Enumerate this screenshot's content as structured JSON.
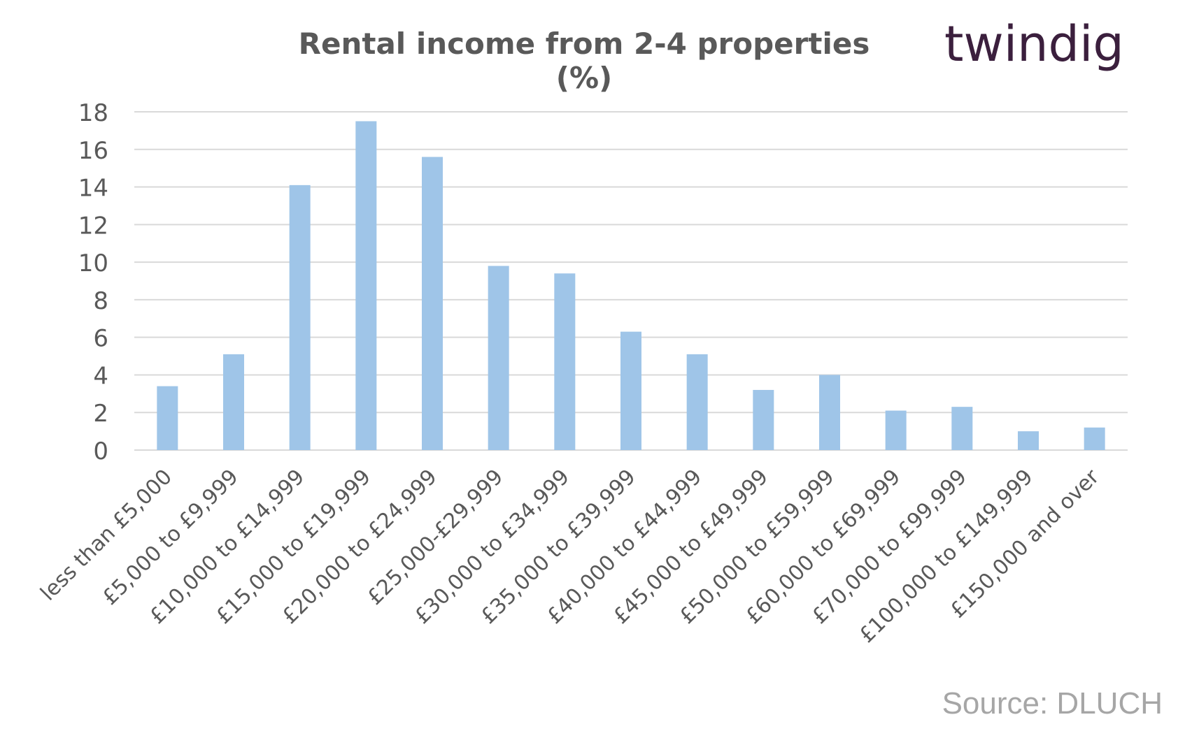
{
  "chart_data": {
    "type": "bar",
    "title": "Rental income from 2-4 properties (%)",
    "categories": [
      "less than £5,000",
      "£5,000 to £9,999",
      "£10,000 to £14,999",
      "£15,000 to £19,999",
      "£20,000 to £24,999",
      "£25,000-£29,999",
      "£30,000 to £34,999",
      "£35,000 to £39,999",
      "£40,000 to £44,999",
      "£45,000 to £49,999",
      "£50,000 to £59,999",
      "£60,000 to £69,999",
      "£70,000 to £99,999",
      "£100,000 to £149,999",
      "£150,000 and over"
    ],
    "values": [
      3.4,
      5.1,
      14.1,
      17.5,
      15.6,
      9.8,
      9.4,
      6.3,
      5.1,
      3.2,
      4.0,
      2.1,
      2.3,
      1.0,
      1.2
    ],
    "ylim": [
      0,
      18
    ],
    "yticks": [
      0,
      2,
      4,
      6,
      8,
      10,
      12,
      14,
      16,
      18
    ],
    "grid": true,
    "bar_color": "#9fc5e8",
    "grid_color": "#d9d9d9",
    "axis_text_color": "#595959"
  },
  "logo": {
    "text_main": "twindig",
    "color": "#3b1f3d",
    "accent_color": "#e8572a"
  },
  "source": "Source: DLUCH"
}
